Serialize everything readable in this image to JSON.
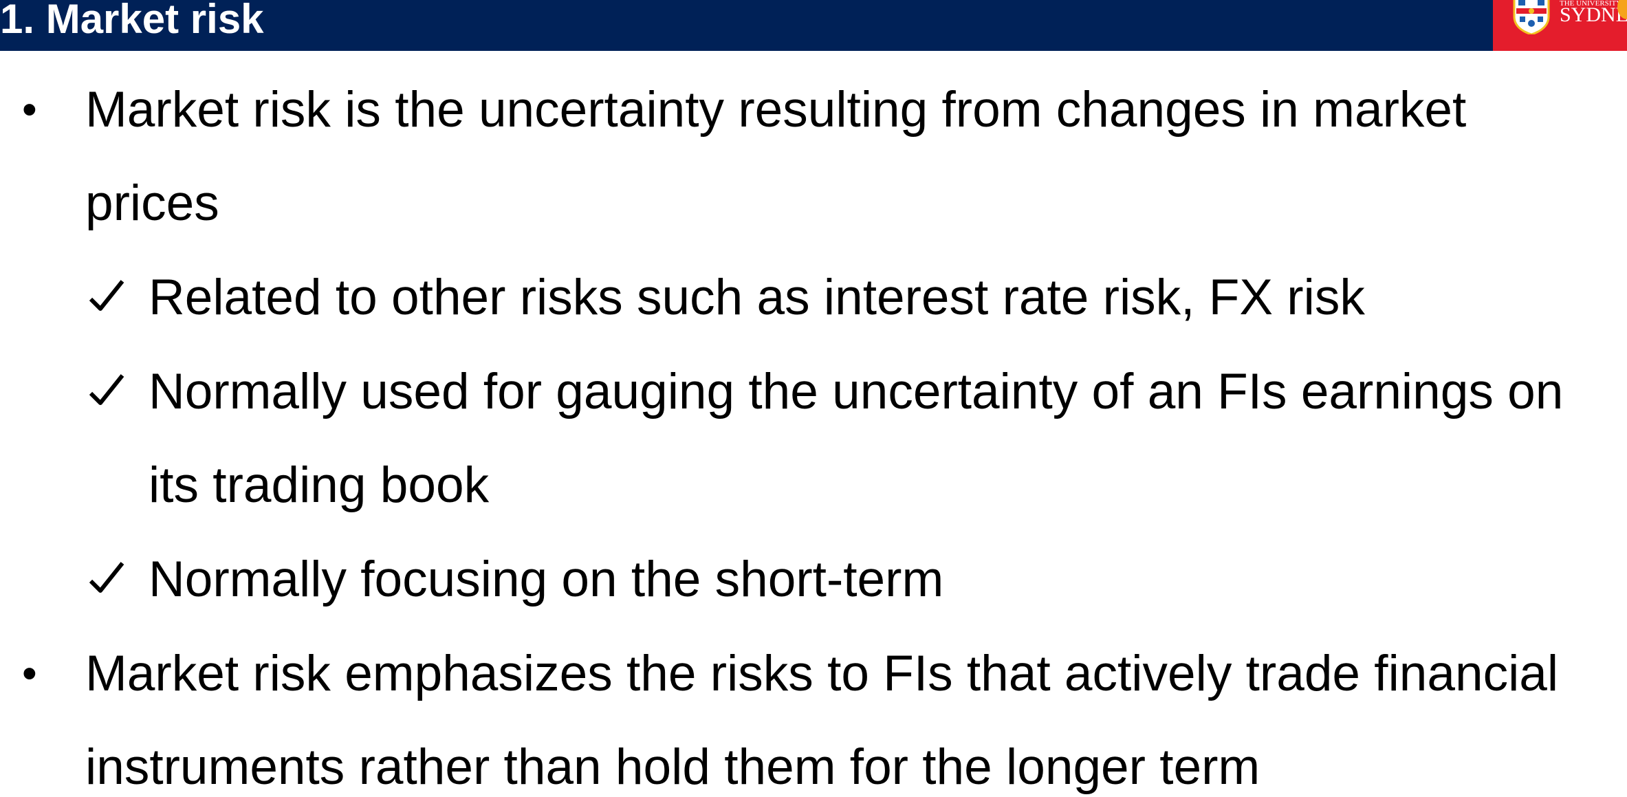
{
  "header": {
    "title": "1. Market risk",
    "logo_small_text": "THE UNIVERSITY OF",
    "logo_main_text": "SYDNEY"
  },
  "colors": {
    "header_bg": "#002157",
    "logo_bg": "#e41d2c",
    "text": "#000000"
  },
  "body": {
    "bullet_symbol": "•",
    "check_icon": "check-mark-icon",
    "items": [
      {
        "level": 1,
        "lines": [
          "Market risk is the uncertainty resulting from changes in market",
          "prices"
        ]
      },
      {
        "level": 2,
        "lines": [
          "Related to other risks such as interest rate risk, FX risk"
        ]
      },
      {
        "level": 2,
        "lines": [
          "Normally used for gauging the uncertainty of an FIs earnings on",
          "its trading book"
        ]
      },
      {
        "level": 2,
        "lines": [
          "Normally focusing on the short-term"
        ]
      },
      {
        "level": 1,
        "lines": [
          "Market risk emphasizes the risks to FIs that actively trade financial",
          "instruments rather than hold them for the longer term"
        ]
      }
    ]
  }
}
